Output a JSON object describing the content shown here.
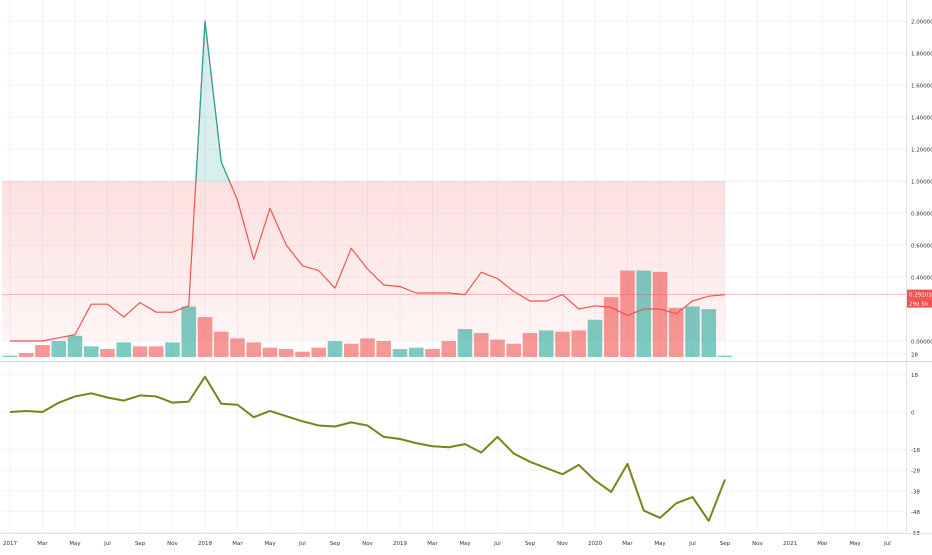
{
  "chart_data": [
    {
      "type": "line",
      "panel": "price",
      "y_axis_ticks": [
        "2.20000",
        "2.00000",
        "1.80000",
        "1.60000",
        "1.40000",
        "1.20000",
        "1.00000",
        "0.80000",
        "0.60000",
        "0.40000",
        "0.00000"
      ],
      "ylim": [
        -0.18,
        2.2
      ],
      "price_scale_position": "right",
      "current_price_label": "0.29203",
      "countdown_label": "29d 5h",
      "band": {
        "low": 0.0,
        "high": 1.0,
        "color": "#ef5350"
      },
      "series": [
        {
          "line_color": "#ef5350",
          "fill_above_1_color": "#26a69a",
          "x": [
            "2017-01",
            "2017-02",
            "2017-03",
            "2017-04",
            "2017-05",
            "2017-06",
            "2017-07",
            "2017-08",
            "2017-09",
            "2017-10",
            "2017-11",
            "2017-12",
            "2018-01",
            "2018-02",
            "2018-03",
            "2018-04",
            "2018-05",
            "2018-06",
            "2018-07",
            "2018-08",
            "2018-09",
            "2018-10",
            "2018-11",
            "2018-12",
            "2019-01",
            "2019-02",
            "2019-03",
            "2019-04",
            "2019-05",
            "2019-06",
            "2019-07",
            "2019-08",
            "2019-09",
            "2019-10",
            "2019-11",
            "2019-12",
            "2020-01",
            "2020-02",
            "2020-03",
            "2020-04",
            "2020-05",
            "2020-06",
            "2020-07",
            "2020-08",
            "2020-09"
          ],
          "values": [
            0.0,
            0.0,
            0.0,
            0.02,
            0.04,
            0.23,
            0.23,
            0.15,
            0.24,
            0.18,
            0.18,
            0.22,
            2.0,
            1.12,
            0.88,
            0.51,
            0.83,
            0.6,
            0.47,
            0.44,
            0.33,
            0.58,
            0.45,
            0.35,
            0.34,
            0.3,
            0.3,
            0.3,
            0.29,
            0.43,
            0.39,
            0.31,
            0.25,
            0.25,
            0.29,
            0.2,
            0.22,
            0.21,
            0.16,
            0.2,
            0.2,
            0.17,
            0.25,
            0.28,
            0.29
          ]
        }
      ],
      "volume": {
        "up_color": "#26a69a",
        "down_color": "#ef5350",
        "values": [
          1,
          3,
          9,
          12,
          16,
          8,
          6,
          11,
          8,
          8,
          11,
          38,
          30,
          19,
          14,
          11,
          7,
          6,
          4,
          7,
          12,
          10,
          14,
          12,
          6,
          7,
          6,
          12,
          21,
          18,
          13,
          10,
          18,
          20,
          19,
          20,
          28,
          45,
          65,
          65,
          64,
          37,
          38,
          36,
          1
        ],
        "directions": [
          "up",
          "down",
          "down",
          "up",
          "up",
          "up",
          "down",
          "up",
          "down",
          "down",
          "up",
          "up",
          "down",
          "down",
          "down",
          "down",
          "down",
          "down",
          "down",
          "down",
          "up",
          "down",
          "down",
          "down",
          "up",
          "up",
          "down",
          "down",
          "up",
          "down",
          "down",
          "down",
          "down",
          "up",
          "down",
          "down",
          "up",
          "down",
          "down",
          "up",
          "down",
          "down",
          "up",
          "up",
          "up"
        ]
      }
    },
    {
      "type": "line",
      "panel": "indicator",
      "y_axis_ticks": [
        "28",
        "18",
        "0",
        "-18",
        "-28",
        "-38",
        "-48",
        "-58"
      ],
      "ylim": [
        -64,
        34
      ],
      "series": [
        {
          "line_color": "#808019",
          "x": [
            "2017-01",
            "2017-02",
            "2017-03",
            "2017-04",
            "2017-05",
            "2017-06",
            "2017-07",
            "2017-08",
            "2017-09",
            "2017-10",
            "2017-11",
            "2017-12",
            "2018-01",
            "2018-02",
            "2018-03",
            "2018-04",
            "2018-05",
            "2018-06",
            "2018-07",
            "2018-08",
            "2018-09",
            "2018-10",
            "2018-11",
            "2018-12",
            "2019-01",
            "2019-02",
            "2019-03",
            "2019-04",
            "2019-05",
            "2019-06",
            "2019-07",
            "2019-08",
            "2019-09",
            "2019-10",
            "2019-11",
            "2019-12",
            "2020-01",
            "2020-02",
            "2020-03",
            "2020-04",
            "2020-05",
            "2020-06",
            "2020-07",
            "2020-08",
            "2020-09"
          ],
          "values": [
            0,
            0.5,
            0,
            4.5,
            7.5,
            9,
            7,
            5.5,
            8,
            7.5,
            4.5,
            5,
            17,
            4,
            3.5,
            -2.5,
            0.5,
            -2,
            -4.5,
            -6.5,
            -7,
            -5,
            -6.5,
            -12,
            -13,
            -15,
            -16.5,
            -17,
            -15.5,
            -19.5,
            -12,
            -20,
            -24,
            -27,
            -30,
            -25.5,
            -33,
            -38.5,
            -25,
            -47.5,
            -51,
            -44,
            -41,
            -52.5,
            -32.5
          ]
        }
      ]
    }
  ],
  "x_axis_labels": [
    "2017",
    "Mar",
    "May",
    "Jul",
    "Sep",
    "Nov",
    "2018",
    "Mar",
    "May",
    "Jul",
    "Sep",
    "Nov",
    "2019",
    "Mar",
    "May",
    "Jul",
    "Sep",
    "Nov",
    "2020",
    "Mar",
    "May",
    "Jul",
    "Sep",
    "Nov",
    "2021",
    "Mar",
    "May",
    "Jul"
  ]
}
